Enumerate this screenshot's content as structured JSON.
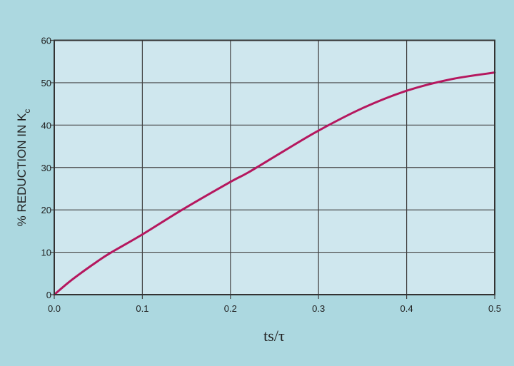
{
  "chart_data": {
    "type": "line",
    "title": "",
    "xlabel": "ts/τ",
    "ylabel": "% REDUCTION IN K",
    "ylabel_subscript": "c",
    "xlim": [
      0.0,
      0.5
    ],
    "ylim": [
      0,
      60
    ],
    "xticks": [
      "0.0",
      "0.1",
      "0.2",
      "0.3",
      "0.4",
      "0.5"
    ],
    "yticks": [
      "0",
      "10",
      "20",
      "30",
      "40",
      "50",
      "60"
    ],
    "grid": true,
    "series": [
      {
        "x": [
          0.0,
          0.02,
          0.05,
          0.065,
          0.1,
          0.145,
          0.2,
          0.22,
          0.26,
          0.3,
          0.35,
          0.4,
          0.45,
          0.5
        ],
        "y": [
          0,
          3.5,
          8,
          10,
          14.2,
          20,
          26.6,
          28.8,
          33.8,
          38.7,
          44,
          48.1,
          50.8,
          52.4
        ]
      }
    ],
    "colors": {
      "background": "#acd8e0",
      "plot_area": "#cfe7ee",
      "grid": "#444444",
      "line": "#b5175e"
    }
  }
}
